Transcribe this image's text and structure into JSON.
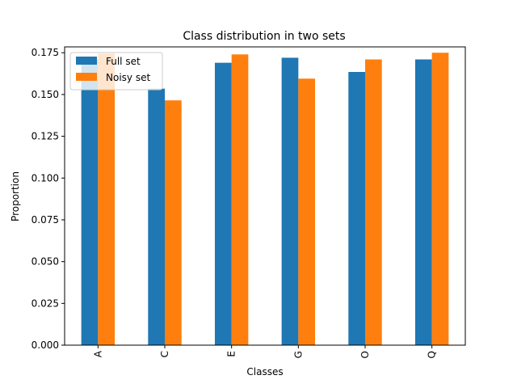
{
  "chart_data": {
    "type": "bar",
    "title": "Class distribution in two sets",
    "xlabel": "Classes",
    "ylabel": "Proportion",
    "categories": [
      "A",
      "C",
      "E",
      "G",
      "O",
      "Q"
    ],
    "series": [
      {
        "name": "Full set",
        "color": "#1f77b4",
        "values": [
          0.171,
          0.1535,
          0.169,
          0.172,
          0.1635,
          0.171
        ]
      },
      {
        "name": "Noisy set",
        "color": "#ff7f0e",
        "values": [
          0.1745,
          0.1465,
          0.174,
          0.1595,
          0.171,
          0.175
        ]
      }
    ],
    "ylim": [
      0,
      0.1785
    ],
    "yticks": [
      "0.000",
      "0.025",
      "0.050",
      "0.075",
      "0.100",
      "0.125",
      "0.150",
      "0.175"
    ],
    "grid": false,
    "legend_position": "top-left"
  }
}
